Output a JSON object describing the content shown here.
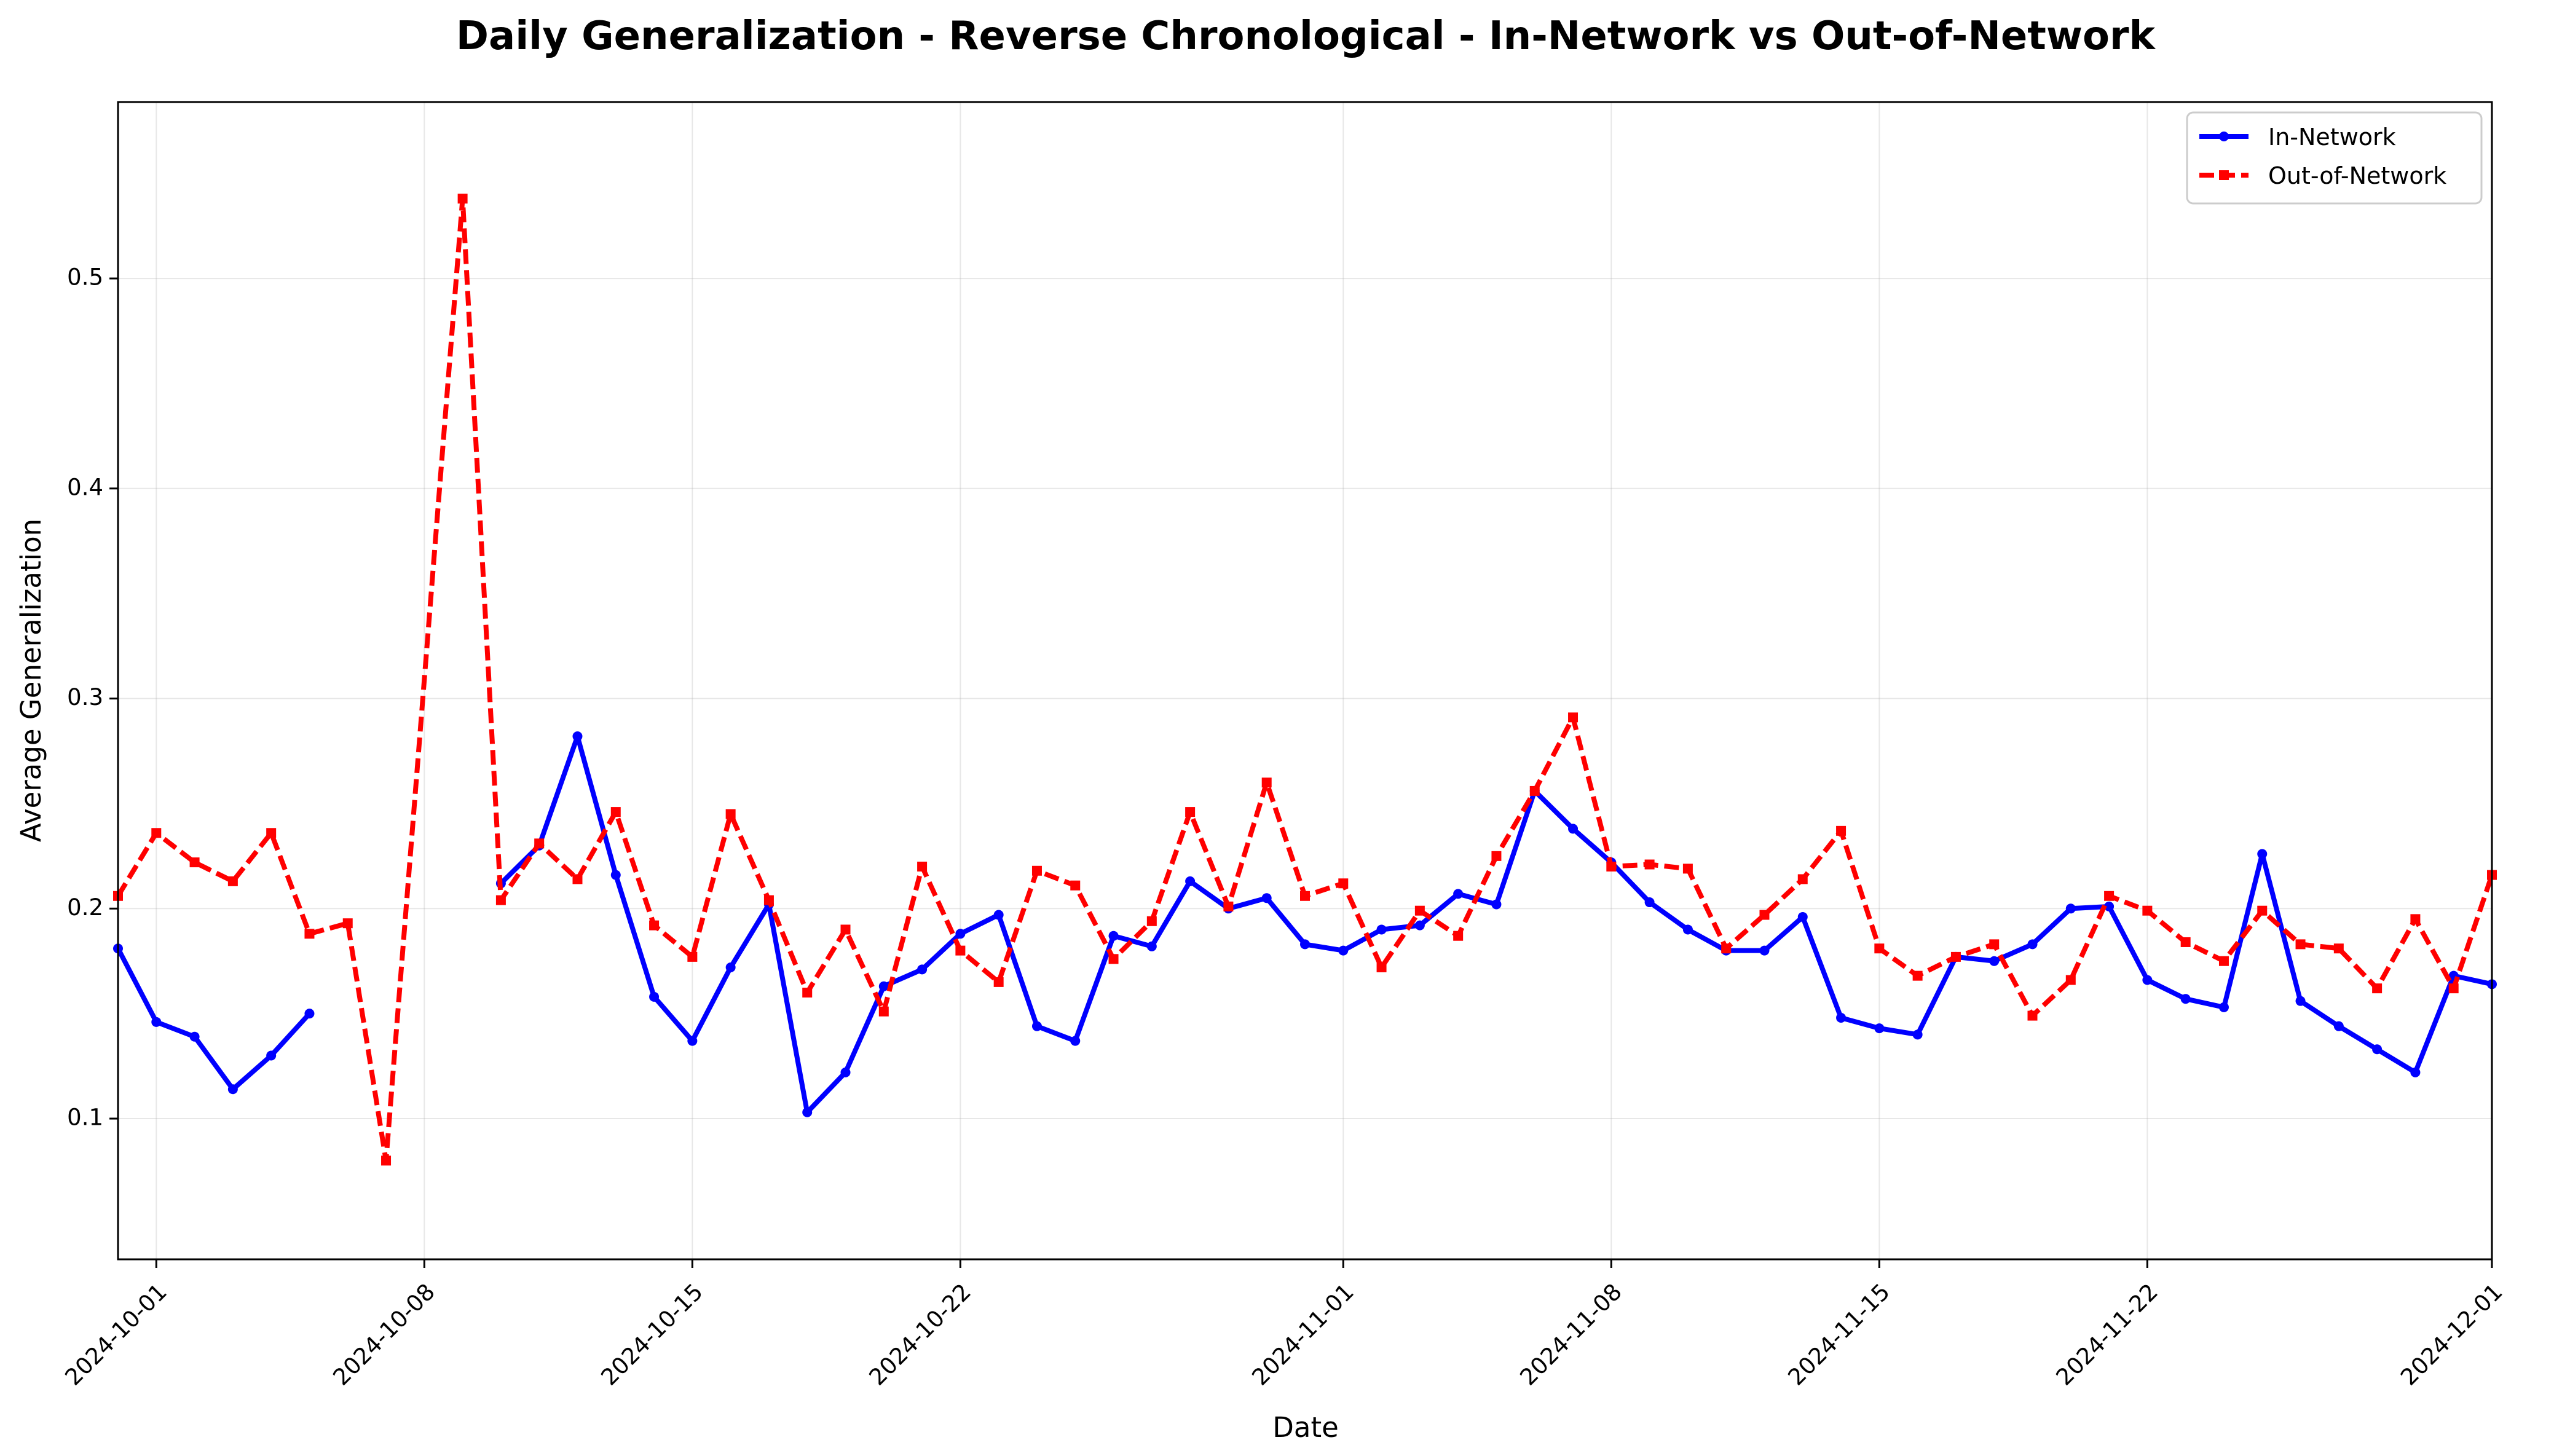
{
  "chart_data": {
    "type": "line",
    "title": "Daily Generalization - Reverse Chronological - In-Network vs Out-of-Network",
    "xlabel": "Date",
    "ylabel": "Average Generalization",
    "x_type": "date",
    "xlim": [
      "2024-09-30",
      "2024-12-01"
    ],
    "ylim": [
      0.033,
      0.584
    ],
    "x_ticks": [
      "2024-10-01",
      "2024-10-08",
      "2024-10-15",
      "2024-10-22",
      "2024-11-01",
      "2024-11-08",
      "2024-11-15",
      "2024-11-22",
      "2024-12-01"
    ],
    "y_ticks": [
      0.1,
      0.2,
      0.3,
      0.4,
      0.5
    ],
    "grid": true,
    "legend_position": "top-right",
    "series": [
      {
        "name": "In-Network",
        "color": "#0000ff",
        "style": "solid",
        "marker": "circle",
        "points": [
          [
            "2024-09-30",
            0.181
          ],
          [
            "2024-10-01",
            0.146
          ],
          [
            "2024-10-02",
            0.139
          ],
          [
            "2024-10-03",
            0.114
          ],
          [
            "2024-10-04",
            0.13
          ],
          [
            "2024-10-05",
            0.15
          ],
          null,
          [
            "2024-10-10",
            0.212
          ],
          [
            "2024-10-11",
            0.23
          ],
          [
            "2024-10-12",
            0.282
          ],
          [
            "2024-10-13",
            0.216
          ],
          [
            "2024-10-14",
            0.158
          ],
          [
            "2024-10-15",
            0.137
          ],
          [
            "2024-10-16",
            0.172
          ],
          [
            "2024-10-17",
            0.202
          ],
          [
            "2024-10-18",
            0.103
          ],
          [
            "2024-10-19",
            0.122
          ],
          [
            "2024-10-20",
            0.163
          ],
          [
            "2024-10-21",
            0.171
          ],
          [
            "2024-10-22",
            0.188
          ],
          [
            "2024-10-23",
            0.197
          ],
          [
            "2024-10-24",
            0.144
          ],
          [
            "2024-10-25",
            0.137
          ],
          [
            "2024-10-26",
            0.187
          ],
          [
            "2024-10-27",
            0.182
          ],
          [
            "2024-10-28",
            0.213
          ],
          [
            "2024-10-29",
            0.2
          ],
          [
            "2024-10-30",
            0.205
          ],
          [
            "2024-10-31",
            0.183
          ],
          [
            "2024-11-01",
            0.18
          ],
          [
            "2024-11-02",
            0.19
          ],
          [
            "2024-11-03",
            0.192
          ],
          [
            "2024-11-04",
            0.207
          ],
          [
            "2024-11-05",
            0.202
          ],
          [
            "2024-11-06",
            0.256
          ],
          [
            "2024-11-07",
            0.238
          ],
          [
            "2024-11-08",
            0.222
          ],
          [
            "2024-11-09",
            0.203
          ],
          [
            "2024-11-10",
            0.19
          ],
          [
            "2024-11-11",
            0.18
          ],
          [
            "2024-11-12",
            0.18
          ],
          [
            "2024-11-13",
            0.196
          ],
          [
            "2024-11-14",
            0.148
          ],
          [
            "2024-11-15",
            0.143
          ],
          [
            "2024-11-16",
            0.14
          ],
          [
            "2024-11-17",
            0.177
          ],
          [
            "2024-11-18",
            0.175
          ],
          [
            "2024-11-19",
            0.183
          ],
          [
            "2024-11-20",
            0.2
          ],
          [
            "2024-11-21",
            0.201
          ],
          [
            "2024-11-22",
            0.166
          ],
          [
            "2024-11-23",
            0.157
          ],
          [
            "2024-11-24",
            0.153
          ],
          [
            "2024-11-25",
            0.226
          ],
          [
            "2024-11-26",
            0.156
          ],
          [
            "2024-11-27",
            0.144
          ],
          [
            "2024-11-28",
            0.133
          ],
          [
            "2024-11-29",
            0.122
          ],
          [
            "2024-11-30",
            0.168
          ],
          [
            "2024-12-01",
            0.164
          ]
        ]
      },
      {
        "name": "Out-of-Network",
        "color": "#ff0000",
        "style": "dashed",
        "marker": "square",
        "points": [
          [
            "2024-09-30",
            0.206
          ],
          [
            "2024-10-01",
            0.236
          ],
          [
            "2024-10-02",
            0.222
          ],
          [
            "2024-10-03",
            0.213
          ],
          [
            "2024-10-04",
            0.236
          ],
          [
            "2024-10-05",
            0.188
          ],
          [
            "2024-10-06",
            0.193
          ],
          [
            "2024-10-07",
            0.08
          ],
          [
            "2024-10-09",
            0.538
          ],
          [
            "2024-10-10",
            0.204
          ],
          [
            "2024-10-11",
            0.231
          ],
          [
            "2024-10-12",
            0.214
          ],
          [
            "2024-10-13",
            0.246
          ],
          [
            "2024-10-14",
            0.192
          ],
          [
            "2024-10-15",
            0.177
          ],
          [
            "2024-10-16",
            0.245
          ],
          [
            "2024-10-17",
            0.204
          ],
          [
            "2024-10-18",
            0.16
          ],
          [
            "2024-10-19",
            0.19
          ],
          [
            "2024-10-20",
            0.151
          ],
          [
            "2024-10-21",
            0.22
          ],
          [
            "2024-10-22",
            0.18
          ],
          [
            "2024-10-23",
            0.165
          ],
          [
            "2024-10-24",
            0.218
          ],
          [
            "2024-10-25",
            0.211
          ],
          [
            "2024-10-26",
            0.176
          ],
          [
            "2024-10-27",
            0.194
          ],
          [
            "2024-10-28",
            0.246
          ],
          [
            "2024-10-29",
            0.201
          ],
          [
            "2024-10-30",
            0.26
          ],
          [
            "2024-10-31",
            0.206
          ],
          [
            "2024-11-01",
            0.212
          ],
          [
            "2024-11-02",
            0.172
          ],
          [
            "2024-11-03",
            0.199
          ],
          [
            "2024-11-04",
            0.187
          ],
          [
            "2024-11-05",
            0.225
          ],
          [
            "2024-11-06",
            0.256
          ],
          [
            "2024-11-07",
            0.291
          ],
          [
            "2024-11-08",
            0.22
          ],
          [
            "2024-11-09",
            0.221
          ],
          [
            "2024-11-10",
            0.219
          ],
          [
            "2024-11-11",
            0.181
          ],
          [
            "2024-11-12",
            0.197
          ],
          [
            "2024-11-13",
            0.214
          ],
          [
            "2024-11-14",
            0.237
          ],
          [
            "2024-11-15",
            0.181
          ],
          [
            "2024-11-16",
            0.168
          ],
          [
            "2024-11-17",
            0.177
          ],
          [
            "2024-11-18",
            0.183
          ],
          [
            "2024-11-19",
            0.149
          ],
          [
            "2024-11-20",
            0.166
          ],
          [
            "2024-11-21",
            0.206
          ],
          [
            "2024-11-22",
            0.199
          ],
          [
            "2024-11-23",
            0.184
          ],
          [
            "2024-11-24",
            0.175
          ],
          [
            "2024-11-25",
            0.199
          ],
          [
            "2024-11-26",
            0.183
          ],
          [
            "2024-11-27",
            0.181
          ],
          [
            "2024-11-28",
            0.162
          ],
          [
            "2024-11-29",
            0.195
          ],
          [
            "2024-11-30",
            0.162
          ],
          [
            "2024-12-01",
            0.216
          ]
        ]
      }
    ]
  }
}
